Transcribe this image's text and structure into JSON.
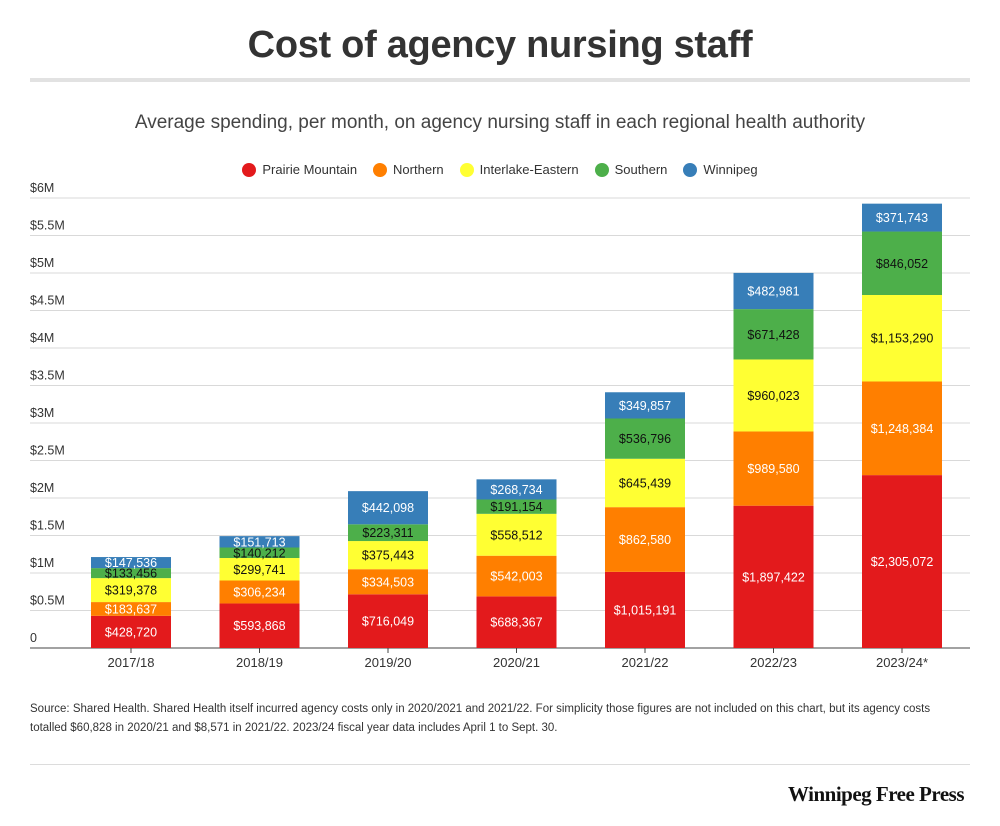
{
  "header": {
    "title": "Cost of agency nursing staff",
    "subtitle": "Average spending, per month, on agency nursing staff in each regional health authority"
  },
  "colors": {
    "Prairie Mountain": "#e31a1c",
    "Northern": "#ff7f00",
    "Interlake-Eastern": "#ffff33",
    "Southern": "#4daf4a",
    "Winnipeg": "#377eb8"
  },
  "chart_data": {
    "type": "bar",
    "stacked": true,
    "categories": [
      "2017/18",
      "2018/19",
      "2019/20",
      "2020/21",
      "2021/22",
      "2022/23",
      "2023/24*"
    ],
    "series": [
      {
        "name": "Prairie Mountain",
        "values": [
          428720,
          593868,
          716049,
          688367,
          1015191,
          1897422,
          2305072
        ],
        "labels": [
          "$428,720",
          "$593,868",
          "$716,049",
          "$688,367",
          "$1,015,191",
          "$1,897,422",
          "$2,305,072"
        ]
      },
      {
        "name": "Northern",
        "values": [
          183637,
          306234,
          334503,
          542003,
          862580,
          989580,
          1248384
        ],
        "labels": [
          "$183,637",
          "$306,234",
          "$334,503",
          "$542,003",
          "$862,580",
          "$989,580",
          "$1,248,384"
        ]
      },
      {
        "name": "Interlake-Eastern",
        "values": [
          319378,
          299741,
          375443,
          558512,
          645439,
          960023,
          1153290
        ],
        "labels": [
          "$319,378",
          "$299,741",
          "$375,443",
          "$558,512",
          "$645,439",
          "$960,023",
          "$1,153,290"
        ]
      },
      {
        "name": "Southern",
        "values": [
          133456,
          140212,
          223311,
          191154,
          536796,
          671428,
          846052
        ],
        "labels": [
          "$133,456",
          "$140,212",
          "$223,311",
          "$191,154",
          "$536,796",
          "$671,428",
          "$846,052"
        ]
      },
      {
        "name": "Winnipeg",
        "values": [
          147536,
          151713,
          442098,
          268734,
          349857,
          482981,
          371743
        ],
        "labels": [
          "$147,536",
          "$151,713",
          "$442,098",
          "$268,734",
          "$349,857",
          "$482,981",
          "$371,743"
        ]
      }
    ],
    "y_ticks": [
      {
        "value": 0,
        "label": "0"
      },
      {
        "value": 500000,
        "label": "$0.5M"
      },
      {
        "value": 1000000,
        "label": "$1M"
      },
      {
        "value": 1500000,
        "label": "$1.5M"
      },
      {
        "value": 2000000,
        "label": "$2M"
      },
      {
        "value": 2500000,
        "label": "$2.5M"
      },
      {
        "value": 3000000,
        "label": "$3M"
      },
      {
        "value": 3500000,
        "label": "$3.5M"
      },
      {
        "value": 4000000,
        "label": "$4M"
      },
      {
        "value": 4500000,
        "label": "$4.5M"
      },
      {
        "value": 5000000,
        "label": "$5M"
      },
      {
        "value": 5500000,
        "label": "$5.5M"
      },
      {
        "value": 6000000,
        "label": "$6M"
      }
    ],
    "ylim": [
      0,
      6000000
    ],
    "grid": true,
    "legend_position": "top"
  },
  "footer": {
    "source": "Source: Shared Health. Shared Health itself incurred agency costs only in 2020/2021 and 2021/22. For simplicity those figures are not included on this chart, but its agency costs totalled $60,828 in 2020/21 and $8,571 in 2021/22. 2023/24 fiscal year data includes April 1 to Sept. 30.",
    "brand": "Winnipeg Free Press"
  }
}
